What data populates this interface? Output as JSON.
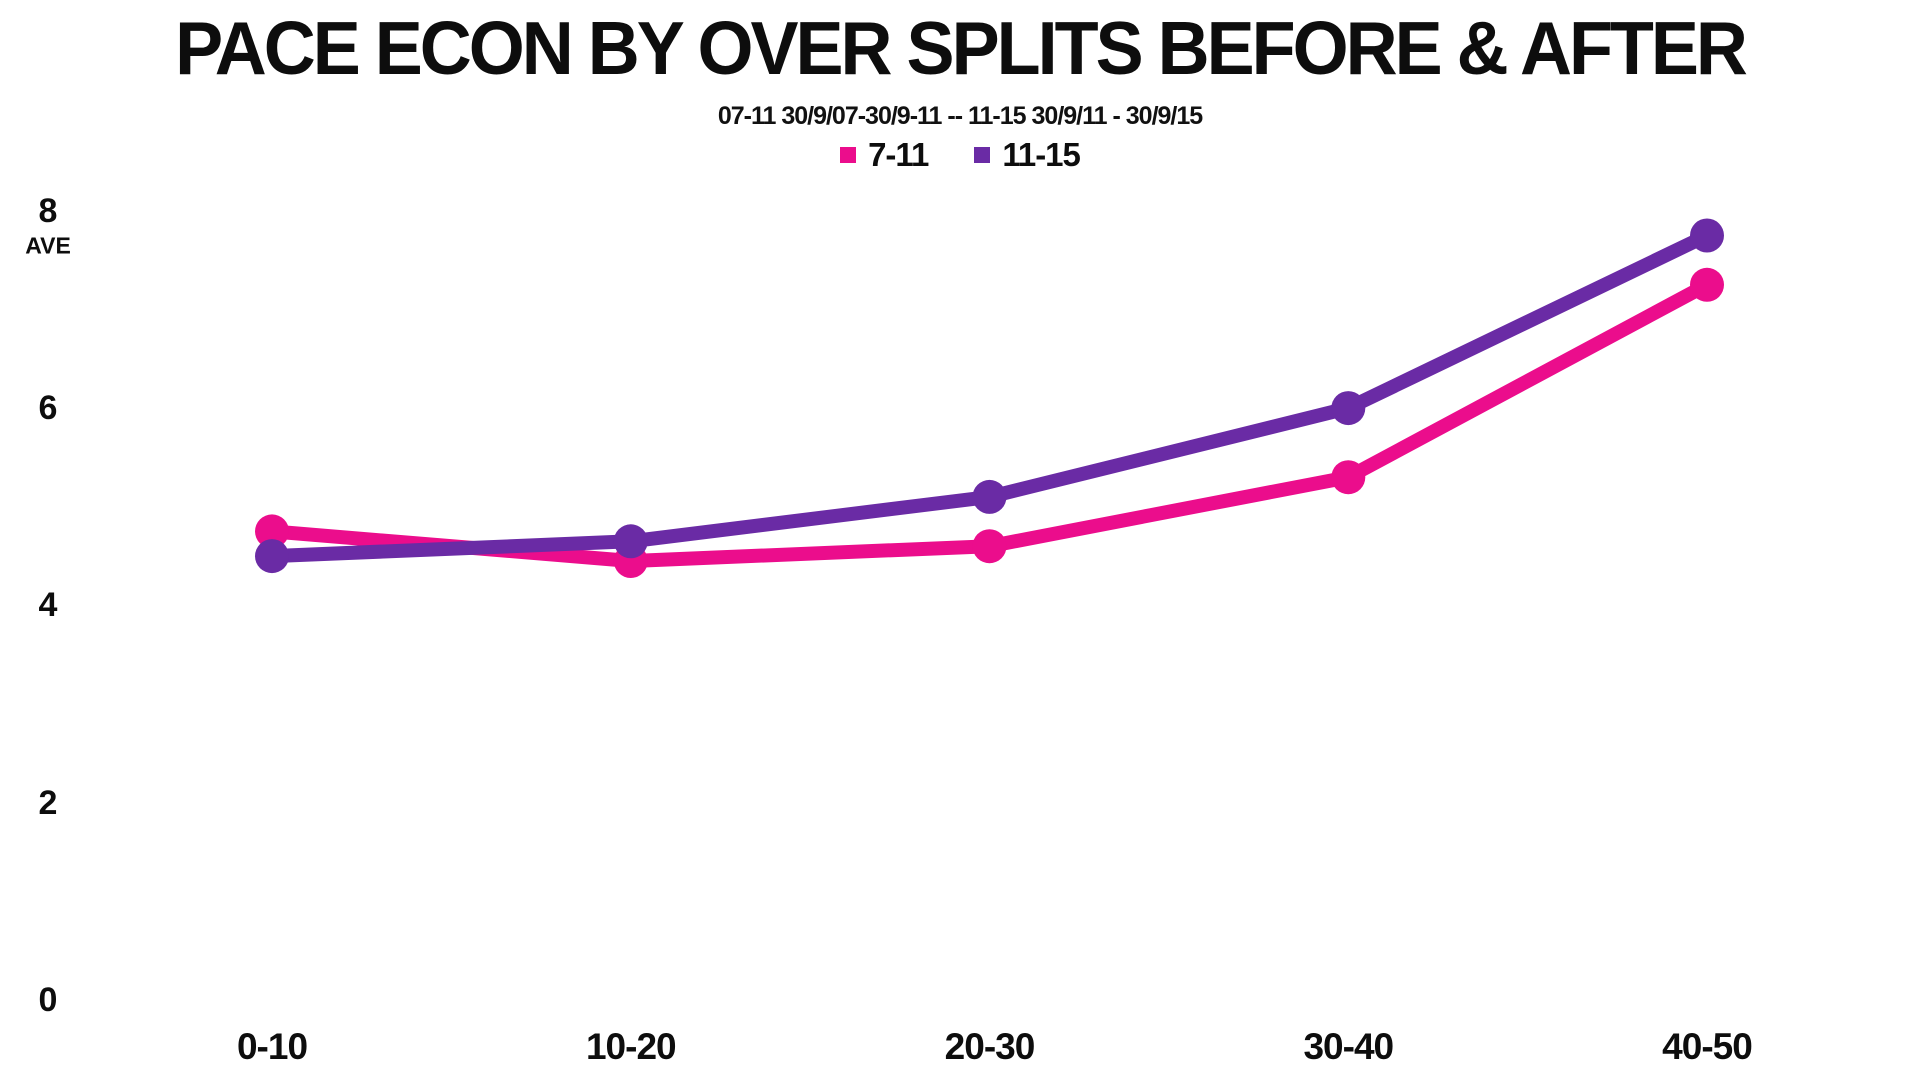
{
  "page": {
    "background_color": "#ffffff",
    "text_color": "#0d0d0d"
  },
  "chart_data": {
    "type": "line",
    "title": "PACE ECON BY OVER SPLITS BEFORE & AFTER",
    "subtitle": "07-11 30/9/07-30/9-11  --  11-15 30/9/11 - 30/9/15",
    "categories": [
      "0-10",
      "10-20",
      "20-30",
      "30-40",
      "40-50"
    ],
    "series": [
      {
        "name": "7-11",
        "color": "#EB0D8C",
        "values": [
          4.75,
          4.45,
          4.6,
          5.3,
          7.25
        ]
      },
      {
        "name": "11-15",
        "color": "#6A2BA5",
        "values": [
          4.5,
          4.65,
          5.1,
          6.0,
          7.75
        ]
      }
    ],
    "xlabel": "",
    "ylabel": "AVE",
    "yticks": [
      0,
      2,
      4,
      6,
      8
    ],
    "ylim": [
      0,
      8.6
    ],
    "grid": false,
    "axis_lines": false,
    "legend_position": "top-center",
    "marker": "circle",
    "background": "#ffffff"
  }
}
